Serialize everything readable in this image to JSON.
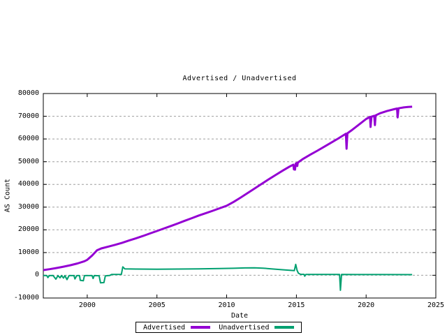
{
  "chart_data": {
    "type": "line",
    "title": "Advertised / Unadvertised",
    "xlabel": "Date",
    "ylabel": "AS Count",
    "xlim": [
      1996.85,
      2025
    ],
    "ylim": [
      -10000,
      80000
    ],
    "x_ticks": [
      2000,
      2005,
      2010,
      2015,
      2020,
      2025
    ],
    "y_ticks": [
      -10000,
      0,
      10000,
      20000,
      30000,
      40000,
      50000,
      60000,
      70000,
      80000
    ],
    "grid": "horizontal-dashed",
    "grid_color": "#9e9e9e",
    "border_color": "#000000",
    "legend_position": "bottom-center-outside",
    "series": [
      {
        "name": "Advertised",
        "color": "#9400d3",
        "line_width": 3,
        "points": [
          [
            1996.85,
            2300
          ],
          [
            1997.3,
            2700
          ],
          [
            1997.8,
            3200
          ],
          [
            1998.3,
            3800
          ],
          [
            1998.8,
            4450
          ],
          [
            1999.3,
            5200
          ],
          [
            1999.8,
            6200
          ],
          [
            2000.0,
            6800
          ],
          [
            2000.35,
            8700
          ],
          [
            2000.7,
            11000
          ],
          [
            2001.0,
            11800
          ],
          [
            2001.5,
            12600
          ],
          [
            2002.0,
            13400
          ],
          [
            2002.5,
            14300
          ],
          [
            2003.0,
            15300
          ],
          [
            2003.5,
            16300
          ],
          [
            2004.0,
            17300
          ],
          [
            2004.5,
            18400
          ],
          [
            2005.0,
            19500
          ],
          [
            2005.5,
            20600
          ],
          [
            2006.0,
            21700
          ],
          [
            2006.5,
            22850
          ],
          [
            2007.0,
            24000
          ],
          [
            2007.5,
            25150
          ],
          [
            2008.0,
            26300
          ],
          [
            2008.5,
            27350
          ],
          [
            2009.0,
            28400
          ],
          [
            2009.5,
            29500
          ],
          [
            2010.0,
            30600
          ],
          [
            2010.5,
            32300
          ],
          [
            2011.0,
            34200
          ],
          [
            2011.5,
            36200
          ],
          [
            2012.0,
            38200
          ],
          [
            2012.5,
            40200
          ],
          [
            2013.0,
            42200
          ],
          [
            2013.5,
            44100
          ],
          [
            2014.0,
            46000
          ],
          [
            2014.5,
            47800
          ],
          [
            2014.78,
            48700
          ],
          [
            2014.82,
            46600
          ],
          [
            2014.9,
            46500
          ],
          [
            2014.95,
            49200
          ],
          [
            2015.02,
            49400
          ],
          [
            2015.06,
            48100
          ],
          [
            2015.1,
            49600
          ],
          [
            2015.5,
            51300
          ],
          [
            2016.0,
            53100
          ],
          [
            2016.5,
            54800
          ],
          [
            2017.0,
            56600
          ],
          [
            2017.5,
            58400
          ],
          [
            2018.0,
            60200
          ],
          [
            2018.55,
            62300
          ],
          [
            2018.6,
            55700
          ],
          [
            2018.66,
            62500
          ],
          [
            2019.0,
            64000
          ],
          [
            2019.5,
            66400
          ],
          [
            2020.0,
            68800
          ],
          [
            2020.28,
            69700
          ],
          [
            2020.32,
            65300
          ],
          [
            2020.38,
            69800
          ],
          [
            2020.58,
            70200
          ],
          [
            2020.63,
            66100
          ],
          [
            2020.68,
            70400
          ],
          [
            2021.0,
            71300
          ],
          [
            2021.5,
            72300
          ],
          [
            2022.0,
            73100
          ],
          [
            2022.22,
            73400
          ],
          [
            2022.26,
            69500
          ],
          [
            2022.32,
            73500
          ],
          [
            2022.7,
            73900
          ],
          [
            2023.0,
            74100
          ],
          [
            2023.3,
            74200
          ]
        ]
      },
      {
        "name": "Unadvertised",
        "color": "#00a070",
        "line_width": 2,
        "points": [
          [
            1996.85,
            -100
          ],
          [
            1997.1,
            -150
          ],
          [
            1997.18,
            -1000
          ],
          [
            1997.28,
            -150
          ],
          [
            1997.55,
            -100
          ],
          [
            1997.75,
            -1700
          ],
          [
            1997.9,
            -150
          ],
          [
            1998.05,
            -1100
          ],
          [
            1998.15,
            -150
          ],
          [
            1998.3,
            -1200
          ],
          [
            1998.4,
            -150
          ],
          [
            1998.55,
            -1900
          ],
          [
            1998.7,
            -150
          ],
          [
            1999.05,
            -150
          ],
          [
            1999.12,
            -1600
          ],
          [
            1999.25,
            -150
          ],
          [
            1999.45,
            -150
          ],
          [
            1999.5,
            -2200
          ],
          [
            1999.72,
            -2400
          ],
          [
            1999.8,
            -150
          ],
          [
            2000.35,
            -150
          ],
          [
            2000.42,
            -1400
          ],
          [
            2000.5,
            -150
          ],
          [
            2000.85,
            -200
          ],
          [
            2000.95,
            -3300
          ],
          [
            2001.2,
            -3200
          ],
          [
            2001.3,
            -250
          ],
          [
            2001.6,
            -100
          ],
          [
            2001.75,
            350
          ],
          [
            2002.45,
            420
          ],
          [
            2002.55,
            3700
          ],
          [
            2002.7,
            2800
          ],
          [
            2003.5,
            2750
          ],
          [
            2005.0,
            2700
          ],
          [
            2006.5,
            2750
          ],
          [
            2008.0,
            2800
          ],
          [
            2009.5,
            2950
          ],
          [
            2010.5,
            3100
          ],
          [
            2011.3,
            3250
          ],
          [
            2012.0,
            3300
          ],
          [
            2012.6,
            3150
          ],
          [
            2013.2,
            2850
          ],
          [
            2014.0,
            2450
          ],
          [
            2014.6,
            2150
          ],
          [
            2014.85,
            2050
          ],
          [
            2014.95,
            4800
          ],
          [
            2015.05,
            2100
          ],
          [
            2015.15,
            900
          ],
          [
            2015.3,
            450
          ],
          [
            2015.55,
            400
          ],
          [
            2015.6,
            -400
          ],
          [
            2015.68,
            380
          ],
          [
            2016.5,
            370
          ],
          [
            2018.1,
            360
          ],
          [
            2018.16,
            -6600
          ],
          [
            2018.24,
            360
          ],
          [
            2019.5,
            330
          ],
          [
            2021.0,
            310
          ],
          [
            2023.3,
            300
          ]
        ]
      }
    ]
  }
}
